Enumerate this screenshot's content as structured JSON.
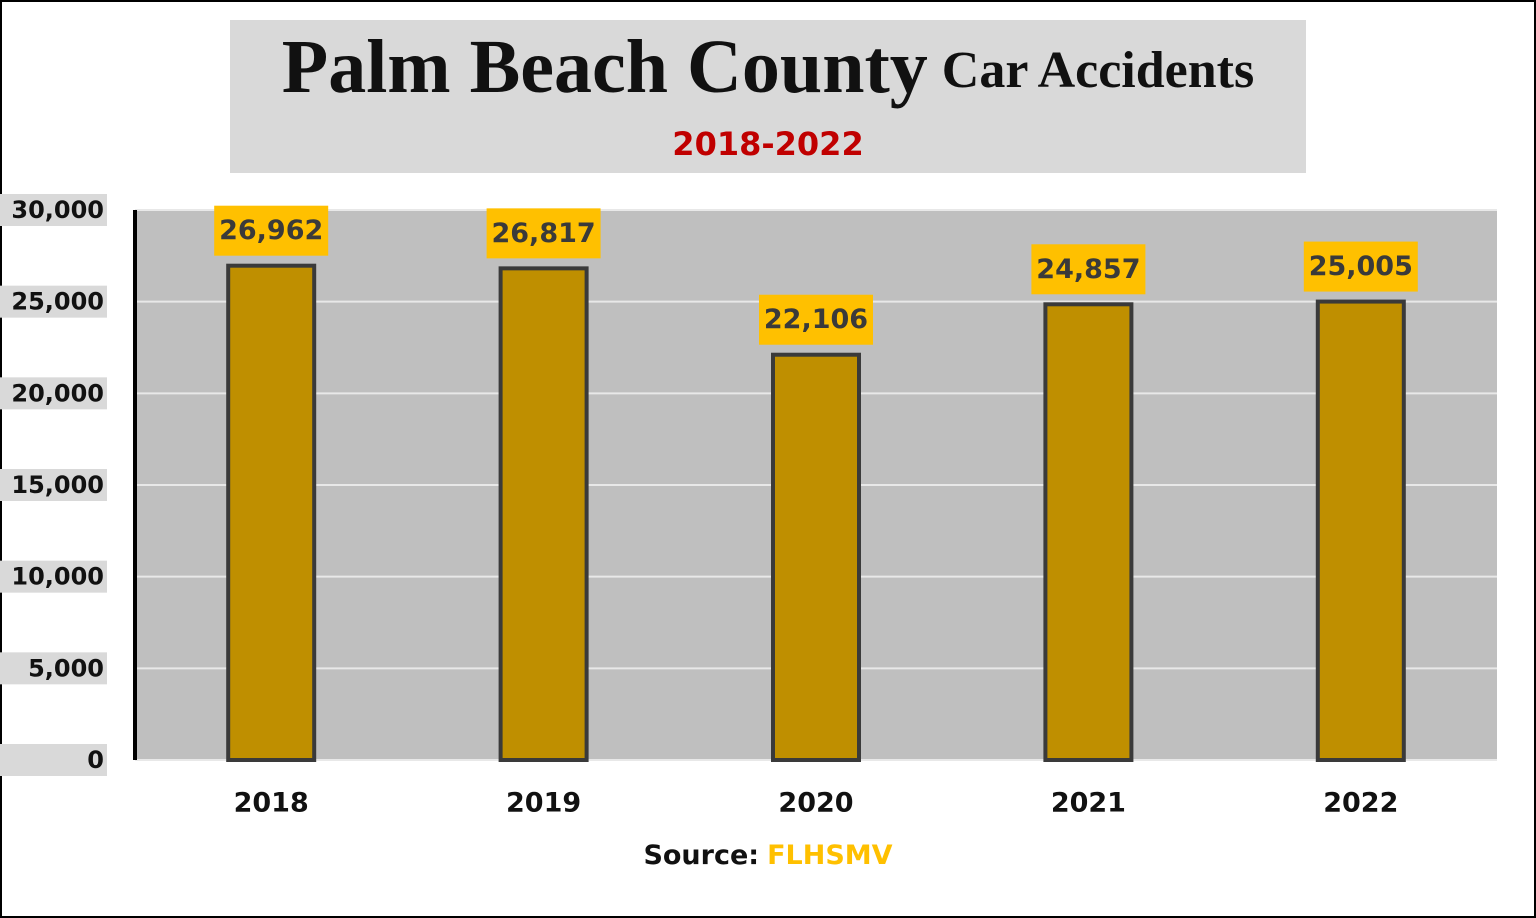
{
  "chart_data": {
    "type": "bar",
    "title": "Palm Beach County",
    "title_secondary": "Car Accidents",
    "subtitle": "2018-2022",
    "source_label": "Source:",
    "source": "FLHSMV",
    "categories": [
      "2018",
      "2019",
      "2020",
      "2021",
      "2022"
    ],
    "values": [
      26962,
      26817,
      22106,
      24857,
      25005
    ],
    "value_labels": [
      "26,962",
      "26,817",
      "22,106",
      "24,857",
      "25,005"
    ],
    "color": "#bf8f00",
    "label_color": "#ffc000",
    "ylim": [
      0,
      30000
    ],
    "yticks": [
      0,
      {
        "value": 5000,
        "label": "5,000"
      },
      {
        "value": 10000,
        "label": "10,000"
      },
      {
        "value": 15000,
        "label": "15,000"
      },
      {
        "value": 20000,
        "label": "20,000"
      },
      {
        "value": 25000,
        "label": "25,000"
      },
      {
        "value": 30000,
        "label": "30,000"
      }
    ],
    "grid": true
  }
}
